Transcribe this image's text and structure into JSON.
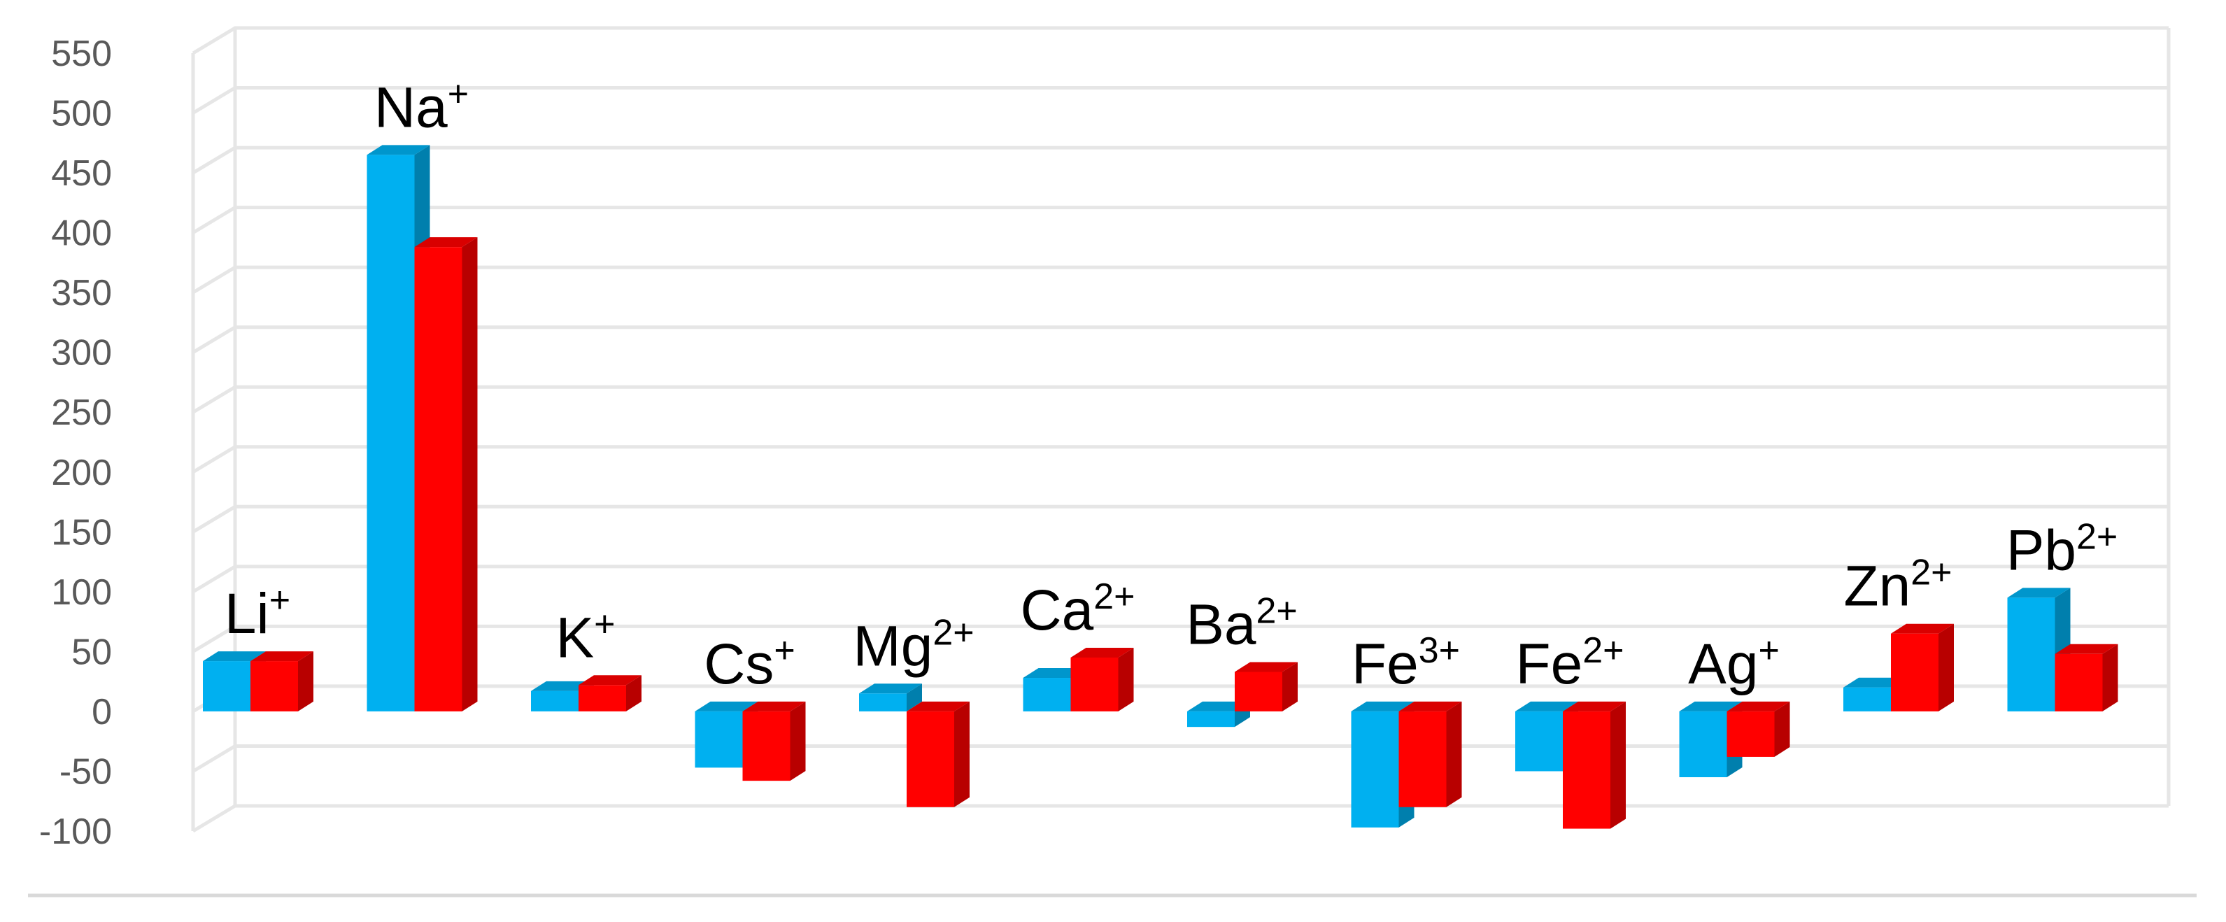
{
  "chart_data": {
    "type": "bar",
    "title": "",
    "xlabel": "",
    "ylabel": "",
    "ylim": [
      -100,
      550
    ],
    "yticks": [
      550,
      500,
      450,
      400,
      350,
      300,
      250,
      200,
      150,
      100,
      50,
      0,
      -50,
      -100
    ],
    "grid": true,
    "legend": "none",
    "style": "3d-clustered-column",
    "categories": [
      {
        "base": "Li",
        "charge": "+"
      },
      {
        "base": "Na",
        "charge": "+"
      },
      {
        "base": "K",
        "charge": "+"
      },
      {
        "base": "Cs",
        "charge": "+"
      },
      {
        "base": "Mg",
        "charge": "2+"
      },
      {
        "base": "Ca",
        "charge": "2+"
      },
      {
        "base": "Ba",
        "charge": "2+"
      },
      {
        "base": "Fe",
        "charge": "3+"
      },
      {
        "base": "Fe",
        "charge": "2+"
      },
      {
        "base": "Ag",
        "charge": "+"
      },
      {
        "base": "Zn",
        "charge": "2+"
      },
      {
        "base": "Pb",
        "charge": "2+"
      }
    ],
    "series": [
      {
        "color": "#00B0F0",
        "values": [
          42,
          465,
          17,
          -47,
          15,
          28,
          -13,
          -97,
          -50,
          -55,
          20,
          95
        ]
      },
      {
        "color": "#FF0000",
        "values": [
          42,
          388,
          22,
          -58,
          -80,
          45,
          33,
          -80,
          -98,
          -38,
          65,
          48
        ]
      }
    ]
  }
}
